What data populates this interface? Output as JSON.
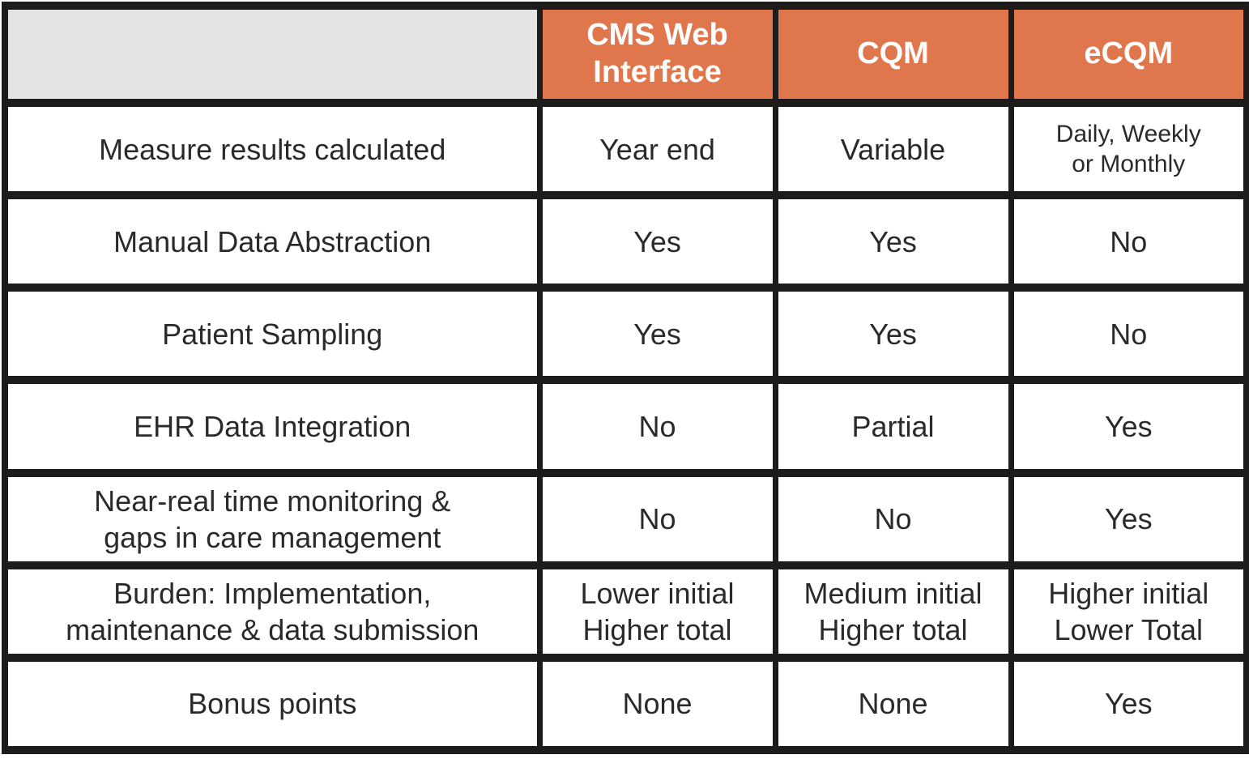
{
  "chart_data": {
    "type": "table",
    "corner_label": "",
    "columns": [
      "CMS Web\nInterface",
      "CQM",
      "eCQM"
    ],
    "rows": [
      {
        "label": "Measure results calculated",
        "values": [
          "Year end",
          "Variable",
          "Daily, Weekly\nor Monthly"
        ]
      },
      {
        "label": "Manual Data Abstraction",
        "values": [
          "Yes",
          "Yes",
          "No"
        ]
      },
      {
        "label": "Patient Sampling",
        "values": [
          "Yes",
          "Yes",
          "No"
        ]
      },
      {
        "label": "EHR Data Integration",
        "values": [
          "No",
          "Partial",
          "Yes"
        ]
      },
      {
        "label": "Near-real time monitoring &\ngaps in care management",
        "values": [
          "No",
          "No",
          "Yes"
        ]
      },
      {
        "label": "Burden: Implementation,\nmaintenance & data submission",
        "values": [
          "Lower initial\nHigher total",
          "Medium initial\nHigher total",
          "Higher initial\nLower Total"
        ]
      },
      {
        "label": "Bonus points",
        "values": [
          "None",
          "None",
          "Yes"
        ]
      }
    ],
    "layout": {
      "legend": "none",
      "grid": "heavy black cell borders",
      "header_position": "top row, columns 2-4"
    }
  },
  "colors": {
    "header_fill": "#e0764b",
    "header_text": "#ffffff",
    "corner_fill": "#e4e4e4",
    "border": "#1d1c1b",
    "body_text": "#2b2a28",
    "cell_fill": "#ffffff"
  }
}
